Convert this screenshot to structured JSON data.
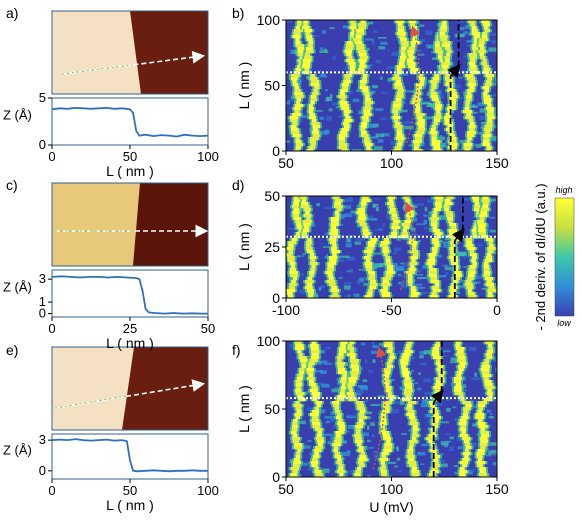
{
  "panel_letters": [
    "a)",
    "b)",
    "c)",
    "d)",
    "e)",
    "f)"
  ],
  "colors": {
    "line": "#2f6fbf",
    "frame": "#2f5f8f",
    "map_low": "#3a3fb0",
    "map_high": "#ffff33",
    "terrace_light_a": "#f4e0c2",
    "terrace_dark_a": "#6a1e10",
    "terrace_light_c": "#e8c87a",
    "terrace_dark_c": "#5a1408",
    "cut_arrow": "#ffffff",
    "guide_red": "#e05040",
    "guide_cyan": "#40c8e8"
  },
  "icons": [
    "topography-image",
    "height-profile",
    "spectroscopy-map",
    "colorbar"
  ],
  "colorbar": {
    "label": "- 2nd deriv. of dI/dU (a.u.)",
    "high": "high",
    "low": "low"
  },
  "chart_data": [
    {
      "panel": "a",
      "type": "line",
      "ylabel": "Z (Å)",
      "xlabel": "L ( nm )",
      "xlim": [
        0,
        100
      ],
      "ylim": [
        0,
        5
      ],
      "xticks": [
        "0",
        "50",
        "100"
      ],
      "yticks": [
        "0",
        "5"
      ],
      "x": [
        0,
        5,
        10,
        15,
        20,
        25,
        30,
        35,
        40,
        45,
        50,
        52,
        54,
        56,
        60,
        65,
        70,
        75,
        80,
        85,
        90,
        95,
        100
      ],
      "y": [
        3.8,
        3.9,
        3.85,
        3.95,
        3.9,
        3.85,
        3.9,
        3.95,
        3.85,
        3.9,
        3.8,
        3.4,
        1.5,
        1.0,
        1.1,
        0.95,
        1.05,
        1.0,
        0.9,
        1.1,
        1.0,
        0.95,
        1.0
      ]
    },
    {
      "panel": "c",
      "type": "line",
      "ylabel": "Z (Å)",
      "xlabel": "L ( nm )",
      "xlim": [
        0,
        50
      ],
      "ylim": [
        -0.3,
        3.8
      ],
      "xticks": [
        "0",
        "25",
        "50"
      ],
      "yticks": [
        "0",
        "1",
        "3"
      ],
      "x": [
        0,
        3,
        6,
        9,
        12,
        15,
        18,
        21,
        24,
        27,
        28,
        29,
        30,
        31,
        33,
        36,
        39,
        42,
        45,
        48,
        50
      ],
      "y": [
        3.2,
        3.25,
        3.2,
        3.15,
        3.2,
        3.2,
        3.15,
        3.2,
        3.15,
        3.1,
        3.0,
        2.0,
        0.4,
        0.1,
        0.05,
        0.0,
        0.05,
        0.0,
        0.02,
        0.0,
        0.0
      ]
    },
    {
      "panel": "e",
      "type": "line",
      "ylabel": "Z (Å)",
      "xlabel": "L ( nm )",
      "xlim": [
        0,
        100
      ],
      "ylim": [
        -0.8,
        3.6
      ],
      "xticks": [
        "0",
        "50",
        "100"
      ],
      "yticks": [
        "0",
        "3"
      ],
      "x": [
        0,
        5,
        10,
        15,
        20,
        25,
        30,
        35,
        40,
        45,
        48,
        50,
        52,
        55,
        60,
        65,
        70,
        75,
        80,
        85,
        90,
        95,
        100
      ],
      "y": [
        3.0,
        3.05,
        3.0,
        3.1,
        3.0,
        2.95,
        3.0,
        3.05,
        2.95,
        3.0,
        2.9,
        1.0,
        0.0,
        -0.05,
        0.0,
        0.05,
        0.0,
        -0.05,
        0.0,
        0.0,
        0.05,
        0.0,
        0.0
      ]
    },
    {
      "panel": "b",
      "type": "heatmap",
      "ylabel": "L ( nm )",
      "xlabel": "",
      "xlim": [
        50,
        150
      ],
      "ylim": [
        0,
        100
      ],
      "xticks": [
        "50",
        "100",
        "150"
      ],
      "yticks": [
        "0",
        "50",
        "100"
      ],
      "ridges_x": [
        55,
        63,
        78,
        88,
        103,
        113,
        121,
        128,
        137,
        146
      ],
      "step_y": 60
    },
    {
      "panel": "d",
      "type": "heatmap",
      "ylabel": "L ( nm )",
      "xlabel": "",
      "xlim": [
        -100,
        0
      ],
      "ylim": [
        0,
        50
      ],
      "xticks": [
        "-100",
        "-50",
        "0"
      ],
      "yticks": [
        "0",
        "25",
        "50"
      ],
      "ridges_x": [
        -97,
        -88,
        -78,
        -60,
        -52,
        -40,
        -30,
        -20,
        -12,
        -4
      ],
      "step_y": 30
    },
    {
      "panel": "f",
      "type": "heatmap",
      "ylabel": "L ( nm )",
      "xlabel": "U (mV)",
      "xlim": [
        50,
        150
      ],
      "ylim": [
        0,
        100
      ],
      "xticks": [
        "50",
        "100",
        "150"
      ],
      "yticks": [
        "0",
        "50",
        "100"
      ],
      "ridges_x": [
        55,
        65,
        75,
        85,
        97,
        110,
        120,
        135,
        143
      ],
      "step_y": 58
    }
  ]
}
